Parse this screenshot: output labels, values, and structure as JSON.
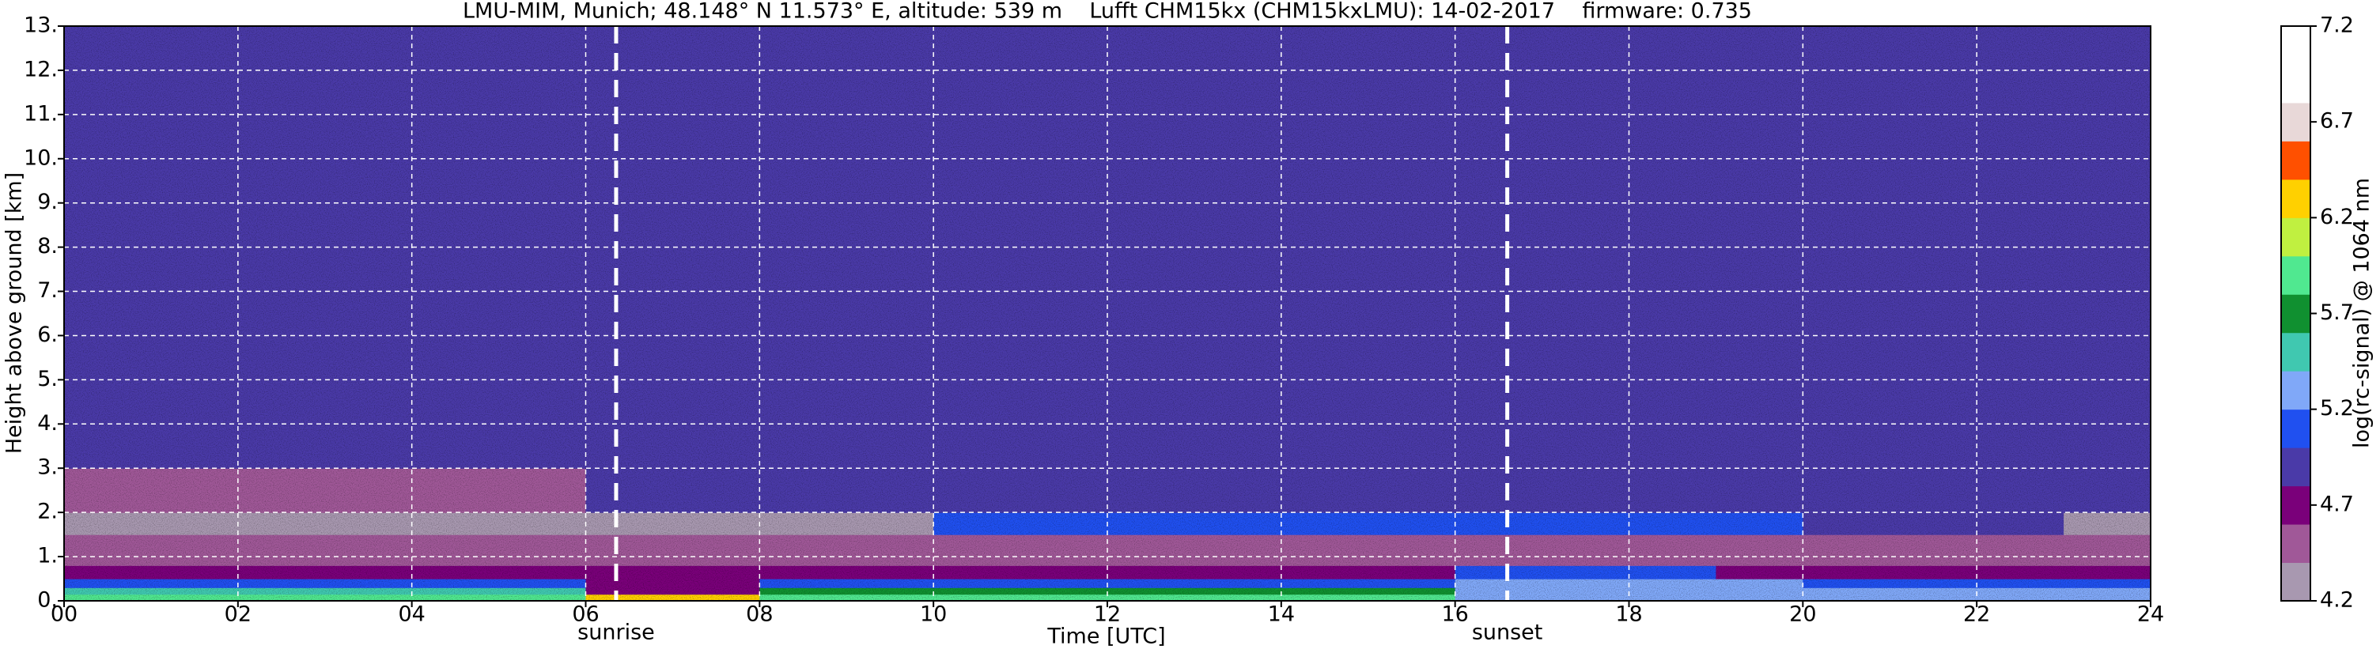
{
  "chart_data": {
    "type": "heatmap",
    "title": "LMU-MIM, Munich; 48.148° N 11.573° E, altitude: 539 m    Lufft CHM15kx (CHM15kxLMU): 14-02-2017    firmware: 0.735",
    "x_label": "Time [UTC]",
    "y_label": "Height above ground [km]",
    "colorbar_label": "log(rc-signal) @ 1064 nm",
    "x_edges": [
      0,
      1,
      2,
      3,
      4,
      5,
      6,
      7,
      8,
      9,
      10,
      11,
      12,
      13,
      14,
      15,
      16,
      17,
      18,
      19,
      20,
      21,
      22,
      23,
      24
    ],
    "y_edges": [
      0,
      0.15,
      0.3,
      0.5,
      0.8,
      1.0,
      1.5,
      2.0,
      2.5,
      3.0,
      4,
      6,
      8,
      10,
      13
    ],
    "z": [
      [
        5.9,
        5.9,
        5.9,
        5.9,
        5.9,
        5.9,
        6.3,
        6.3,
        5.9,
        5.9,
        5.9,
        5.9,
        5.9,
        5.9,
        5.9,
        5.9,
        5.3,
        5.3,
        5.3,
        5.3,
        5.3,
        5.3,
        5.3,
        5.3
      ],
      [
        5.5,
        5.5,
        5.5,
        5.5,
        5.5,
        5.5,
        4.7,
        4.7,
        5.7,
        5.7,
        5.7,
        5.7,
        5.7,
        5.7,
        5.7,
        5.7,
        5.3,
        5.3,
        5.3,
        5.3,
        5.3,
        5.3,
        5.3,
        5.3
      ],
      [
        5.1,
        5.1,
        5.1,
        5.1,
        5.1,
        5.1,
        4.7,
        4.7,
        5.1,
        5.1,
        5.1,
        5.1,
        5.1,
        5.1,
        5.1,
        5.1,
        5.3,
        5.3,
        5.3,
        5.3,
        5.1,
        5.1,
        5.1,
        5.1
      ],
      [
        4.7,
        4.7,
        4.7,
        4.7,
        4.7,
        4.7,
        4.7,
        4.7,
        4.7,
        4.7,
        4.7,
        4.7,
        4.7,
        4.7,
        4.7,
        4.7,
        5.1,
        5.1,
        5.1,
        4.7,
        4.7,
        4.7,
        4.7,
        4.7
      ],
      [
        4.5,
        4.5,
        4.5,
        4.5,
        4.5,
        4.5,
        4.5,
        4.5,
        4.5,
        4.5,
        4.5,
        4.5,
        4.5,
        4.5,
        4.5,
        4.5,
        4.5,
        4.5,
        4.5,
        4.5,
        4.5,
        4.5,
        4.5,
        4.5
      ],
      [
        4.4,
        4.4,
        4.4,
        4.4,
        4.4,
        4.4,
        4.4,
        4.4,
        4.4,
        4.4,
        4.4,
        4.4,
        4.4,
        4.4,
        4.4,
        4.4,
        4.4,
        4.4,
        4.4,
        4.4,
        4.4,
        4.4,
        4.4,
        4.4
      ],
      [
        4.3,
        4.3,
        4.3,
        4.3,
        4.3,
        4.3,
        4.3,
        4.3,
        4.3,
        4.3,
        5.0,
        5.0,
        5.0,
        5.0,
        5.0,
        5.0,
        5.0,
        5.0,
        5.0,
        5.0,
        4.9,
        4.9,
        4.9,
        4.3
      ],
      [
        4.5,
        4.5,
        4.5,
        4.5,
        4.5,
        4.5,
        4.9,
        4.9,
        4.9,
        4.9,
        4.9,
        4.9,
        4.9,
        4.9,
        4.9,
        4.9,
        4.9,
        4.9,
        4.9,
        4.9,
        4.9,
        4.9,
        4.9,
        4.9
      ],
      [
        4.5,
        4.5,
        4.5,
        4.5,
        4.5,
        4.5,
        4.9,
        4.9,
        4.9,
        4.9,
        4.9,
        4.9,
        4.9,
        4.9,
        4.9,
        4.9,
        4.9,
        4.9,
        4.9,
        4.9,
        4.9,
        4.9,
        4.9,
        4.9
      ],
      [
        4.9,
        4.9,
        4.9,
        4.9,
        4.9,
        4.9,
        4.9,
        4.9,
        4.9,
        4.9,
        4.9,
        4.9,
        4.9,
        4.9,
        4.9,
        4.9,
        4.9,
        4.9,
        4.9,
        4.9,
        4.9,
        4.9,
        4.9,
        4.9
      ],
      [
        4.9,
        4.9,
        4.9,
        4.9,
        4.9,
        4.9,
        4.9,
        4.9,
        4.9,
        4.9,
        4.9,
        4.9,
        4.9,
        4.9,
        4.9,
        4.9,
        4.9,
        4.9,
        4.9,
        4.9,
        4.9,
        4.9,
        4.9,
        4.9
      ],
      [
        4.9,
        4.9,
        4.9,
        4.9,
        4.9,
        4.9,
        4.9,
        4.9,
        4.9,
        4.9,
        4.9,
        4.9,
        4.9,
        4.9,
        4.9,
        4.9,
        4.9,
        4.9,
        4.9,
        4.9,
        4.9,
        4.9,
        4.9,
        4.9
      ],
      [
        4.9,
        4.9,
        4.9,
        4.9,
        4.9,
        4.9,
        4.9,
        4.9,
        4.9,
        4.9,
        4.9,
        4.9,
        4.9,
        4.9,
        4.9,
        4.9,
        4.9,
        4.9,
        4.9,
        4.9,
        4.9,
        4.9,
        4.9,
        4.9
      ],
      [
        4.9,
        4.9,
        4.9,
        4.9,
        4.9,
        4.9,
        4.9,
        4.9,
        4.9,
        4.9,
        4.9,
        4.9,
        4.9,
        4.9,
        4.9,
        4.9,
        4.9,
        4.9,
        4.9,
        4.9,
        4.9,
        4.9,
        4.9,
        4.9
      ]
    ],
    "zlim": [
      4.2,
      7.2
    ],
    "colormap": [
      "#a898b0",
      "#a05898",
      "#7a007a",
      "#4a3aa8",
      "#2050f0",
      "#80a8f8",
      "#40c8b0",
      "#109030",
      "#50e890",
      "#c0f040",
      "#ffd000",
      "#ff5000",
      "#e8d8d8",
      "#ffffff",
      "#ffffff"
    ],
    "xlim": [
      0,
      24
    ],
    "xticks": [
      {
        "value": 0,
        "label": "00"
      },
      {
        "value": 2,
        "label": "02"
      },
      {
        "value": 4,
        "label": "04"
      },
      {
        "value": 6,
        "label": "06"
      },
      {
        "value": 8,
        "label": "08"
      },
      {
        "value": 10,
        "label": "10"
      },
      {
        "value": 12,
        "label": "12"
      },
      {
        "value": 14,
        "label": "14"
      },
      {
        "value": 16,
        "label": "16"
      },
      {
        "value": 18,
        "label": "18"
      },
      {
        "value": 20,
        "label": "20"
      },
      {
        "value": 22,
        "label": "22"
      },
      {
        "value": 24,
        "label": "24"
      }
    ],
    "ylim": [
      0,
      13
    ],
    "yticks": [
      {
        "value": 0,
        "label": "0."
      },
      {
        "value": 1,
        "label": "1."
      },
      {
        "value": 2,
        "label": "2."
      },
      {
        "value": 3,
        "label": "3."
      },
      {
        "value": 4,
        "label": "4."
      },
      {
        "value": 5,
        "label": "5."
      },
      {
        "value": 6,
        "label": "6."
      },
      {
        "value": 7,
        "label": "7."
      },
      {
        "value": 8,
        "label": "8."
      },
      {
        "value": 9,
        "label": "9."
      },
      {
        "value": 10,
        "label": "10."
      },
      {
        "value": 11,
        "label": "11."
      },
      {
        "value": 12,
        "label": "12."
      },
      {
        "value": 13,
        "label": "13."
      }
    ],
    "colorbar_ticks": [
      4.2,
      4.7,
      5.2,
      5.7,
      6.2,
      6.7,
      7.2
    ],
    "grid": true,
    "annotations": [
      {
        "x": 6.35,
        "label": "sunrise"
      },
      {
        "x": 16.6,
        "label": "sunset"
      }
    ]
  }
}
